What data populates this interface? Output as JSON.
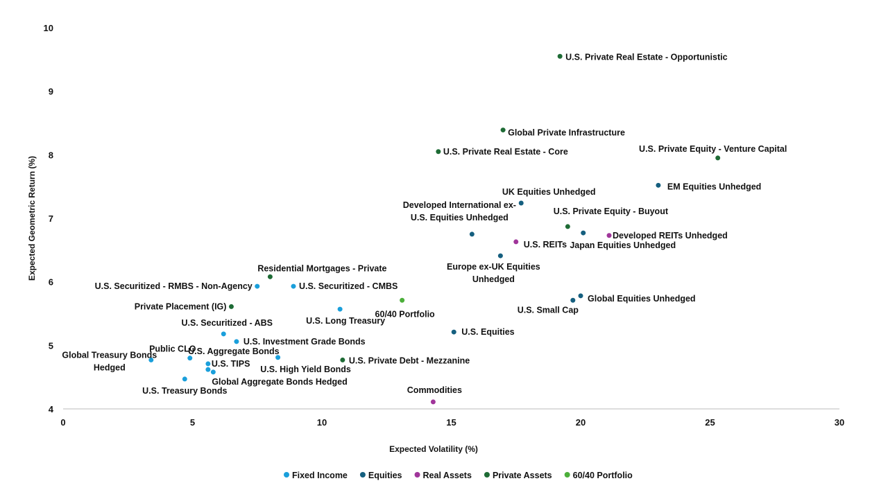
{
  "chart_data": {
    "type": "scatter",
    "xlabel": "Expected Volatility (%)",
    "ylabel": "Expected Geometric Return (%)",
    "xlim": [
      0,
      30
    ],
    "ylim": [
      4,
      10
    ],
    "xticks": [
      0,
      5,
      10,
      15,
      20,
      25,
      30
    ],
    "yticks": [
      4,
      5,
      6,
      7,
      8,
      9,
      10
    ],
    "grid": false,
    "legend_position": "bottom",
    "series": [
      {
        "name": "Fixed Income",
        "color": "#1a9fdb",
        "points": [
          {
            "label": "U.S. Securitized - RMBS - Non-Agency",
            "x": 7.5,
            "y": 5.93
          },
          {
            "label": "U.S. Securitized - CMBS",
            "x": 8.9,
            "y": 5.93
          },
          {
            "label": "U.S. Long Treasury",
            "x": 10.7,
            "y": 5.57
          },
          {
            "label": "U.S. Securitized - ABS",
            "x": 6.2,
            "y": 5.18
          },
          {
            "label": "U.S. Investment Grade Bonds",
            "x": 6.7,
            "y": 5.06
          },
          {
            "label": "Global Treasury Bonds Hedged",
            "x": 3.4,
            "y": 4.77
          },
          {
            "label": "Public CLO",
            "x": 4.9,
            "y": 4.8
          },
          {
            "label": "U.S. High Yield Bonds",
            "x": 8.3,
            "y": 4.81
          },
          {
            "label": "U.S. TIPS",
            "x": 5.6,
            "y": 4.71
          },
          {
            "label": "U.S. Aggregate Bonds",
            "x": 5.6,
            "y": 4.62
          },
          {
            "label": "Global Aggregate Bonds Hedged",
            "x": 5.8,
            "y": 4.58
          },
          {
            "label": "U.S. Treasury Bonds",
            "x": 4.7,
            "y": 4.47
          }
        ]
      },
      {
        "name": "Equities",
        "color": "#155f7f",
        "points": [
          {
            "label": "EM Equities Unhedged",
            "x": 23.0,
            "y": 7.52
          },
          {
            "label": "UK Equities Unhedged",
            "x": 17.7,
            "y": 7.24
          },
          {
            "label": "Japan Equities Unhedged",
            "x": 20.1,
            "y": 6.77
          },
          {
            "label": "Developed International ex-U.S. Equities Unhedged",
            "x": 15.8,
            "y": 6.75
          },
          {
            "label": "Europe ex-UK Equities Unhedged",
            "x": 16.9,
            "y": 6.41
          },
          {
            "label": "U.S. Small Cap",
            "x": 19.7,
            "y": 5.71
          },
          {
            "label": "Global Equities Unhedged",
            "x": 20.0,
            "y": 5.78
          },
          {
            "label": "U.S. Equities",
            "x": 15.1,
            "y": 5.21
          }
        ]
      },
      {
        "name": "Real Assets",
        "color": "#a0359a",
        "points": [
          {
            "label": "Developed REITs Unhedged",
            "x": 21.1,
            "y": 6.73
          },
          {
            "label": "U.S. REITs",
            "x": 17.5,
            "y": 6.63
          },
          {
            "label": "Commodities",
            "x": 14.3,
            "y": 4.11
          }
        ]
      },
      {
        "name": "Private Assets",
        "color": "#1e6b35",
        "points": [
          {
            "label": "U.S. Private Real Estate - Opportunistic",
            "x": 19.2,
            "y": 9.55
          },
          {
            "label": "Global Private Infrastructure",
            "x": 17.0,
            "y": 8.39
          },
          {
            "label": "U.S. Private Real Estate - Core",
            "x": 14.5,
            "y": 8.05
          },
          {
            "label": "U.S. Private Equity - Venture Capital",
            "x": 25.3,
            "y": 7.95
          },
          {
            "label": "U.S. Private Equity - Buyout",
            "x": 19.5,
            "y": 6.87
          },
          {
            "label": "Residential Mortgages - Private",
            "x": 8.0,
            "y": 6.08
          },
          {
            "label": "Private Placement (IG)",
            "x": 6.5,
            "y": 5.61
          },
          {
            "label": "U.S. Private Debt - Mezzanine",
            "x": 10.8,
            "y": 4.77
          }
        ]
      },
      {
        "name": "60/40 Portfolio",
        "color": "#4caf3a",
        "points": [
          {
            "label": "60/40 Portfolio",
            "x": 13.1,
            "y": 5.71
          }
        ]
      }
    ]
  }
}
